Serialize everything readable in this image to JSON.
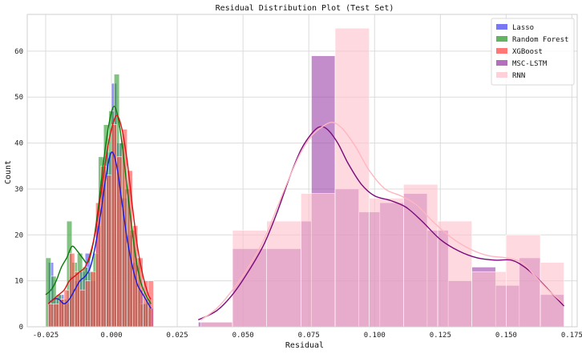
{
  "chart_data": {
    "type": "histogram",
    "title": "Residual Distribution Plot (Test Set)",
    "xlabel": "Residual",
    "ylabel": "Count",
    "xlim": [
      -0.032,
      0.177
    ],
    "ylim": [
      0,
      68
    ],
    "xticks": [
      -0.025,
      0.0,
      0.025,
      0.05,
      0.075,
      0.1,
      0.125,
      0.15,
      0.175
    ],
    "xtick_labels": [
      "-0.025",
      "0.000",
      "0.025",
      "0.050",
      "0.075",
      "0.100",
      "0.125",
      "0.150",
      "0.175"
    ],
    "yticks": [
      0,
      10,
      20,
      30,
      40,
      50,
      60
    ],
    "ytick_labels": [
      "0",
      "10",
      "20",
      "30",
      "40",
      "50",
      "60"
    ],
    "grid": true,
    "legend_position": "top-right",
    "series": [
      {
        "name": "Lasso",
        "color": "#4b4bf0",
        "bins": [
          {
            "x0": -0.024,
            "x1": -0.022,
            "count": 14
          },
          {
            "x0": -0.022,
            "x1": -0.02,
            "count": 6
          },
          {
            "x0": -0.02,
            "x1": -0.018,
            "count": 7
          },
          {
            "x0": -0.018,
            "x1": -0.016,
            "count": 5
          },
          {
            "x0": -0.016,
            "x1": -0.014,
            "count": 11
          },
          {
            "x0": -0.014,
            "x1": -0.012,
            "count": 10
          },
          {
            "x0": -0.012,
            "x1": -0.01,
            "count": 12
          },
          {
            "x0": -0.01,
            "x1": -0.008,
            "count": 16
          },
          {
            "x0": -0.008,
            "x1": -0.006,
            "count": 10
          },
          {
            "x0": -0.006,
            "x1": -0.004,
            "count": 22
          },
          {
            "x0": -0.004,
            "x1": -0.002,
            "count": 31
          },
          {
            "x0": -0.002,
            "x1": 0.0,
            "count": 38
          },
          {
            "x0": 0.0,
            "x1": 0.002,
            "count": 53
          },
          {
            "x0": 0.002,
            "x1": 0.004,
            "count": 40
          },
          {
            "x0": 0.004,
            "x1": 0.006,
            "count": 28
          },
          {
            "x0": 0.006,
            "x1": 0.008,
            "count": 20
          },
          {
            "x0": 0.008,
            "x1": 0.01,
            "count": 14
          },
          {
            "x0": 0.01,
            "x1": 0.012,
            "count": 8
          },
          {
            "x0": 0.012,
            "x1": 0.014,
            "count": 5
          },
          {
            "x0": 0.014,
            "x1": 0.016,
            "count": 4
          }
        ],
        "kde": [
          [
            -0.024,
            5
          ],
          [
            -0.022,
            6
          ],
          [
            -0.02,
            6
          ],
          [
            -0.018,
            5
          ],
          [
            -0.016,
            6
          ],
          [
            -0.014,
            8
          ],
          [
            -0.012,
            10
          ],
          [
            -0.01,
            11
          ],
          [
            -0.008,
            13
          ],
          [
            -0.006,
            18
          ],
          [
            -0.004,
            25
          ],
          [
            -0.002,
            33
          ],
          [
            0.0,
            38
          ],
          [
            0.002,
            35
          ],
          [
            0.004,
            27
          ],
          [
            0.006,
            19
          ],
          [
            0.008,
            13
          ],
          [
            0.01,
            9
          ],
          [
            0.012,
            7
          ],
          [
            0.014,
            5
          ],
          [
            0.015,
            4
          ]
        ]
      },
      {
        "name": "Random Forest",
        "color": "#2e9a2e",
        "bins": [
          {
            "x0": -0.025,
            "x1": -0.023,
            "count": 15
          },
          {
            "x0": -0.023,
            "x1": -0.021,
            "count": 11
          },
          {
            "x0": -0.021,
            "x1": -0.019,
            "count": 7
          },
          {
            "x0": -0.019,
            "x1": -0.017,
            "count": 6
          },
          {
            "x0": -0.017,
            "x1": -0.015,
            "count": 23
          },
          {
            "x0": -0.015,
            "x1": -0.013,
            "count": 14
          },
          {
            "x0": -0.013,
            "x1": -0.011,
            "count": 16
          },
          {
            "x0": -0.011,
            "x1": -0.009,
            "count": 13
          },
          {
            "x0": -0.009,
            "x1": -0.007,
            "count": 12
          },
          {
            "x0": -0.007,
            "x1": -0.005,
            "count": 16
          },
          {
            "x0": -0.005,
            "x1": -0.003,
            "count": 37
          },
          {
            "x0": -0.003,
            "x1": -0.001,
            "count": 44
          },
          {
            "x0": -0.001,
            "x1": 0.001,
            "count": 47
          },
          {
            "x0": 0.001,
            "x1": 0.003,
            "count": 55
          },
          {
            "x0": 0.003,
            "x1": 0.005,
            "count": 40
          },
          {
            "x0": 0.005,
            "x1": 0.007,
            "count": 30
          },
          {
            "x0": 0.007,
            "x1": 0.009,
            "count": 21
          },
          {
            "x0": 0.009,
            "x1": 0.011,
            "count": 15
          },
          {
            "x0": 0.011,
            "x1": 0.013,
            "count": 5
          },
          {
            "x0": 0.013,
            "x1": 0.015,
            "count": 6
          }
        ],
        "kde": [
          [
            -0.025,
            7
          ],
          [
            -0.023,
            8
          ],
          [
            -0.021,
            10
          ],
          [
            -0.019,
            13
          ],
          [
            -0.017,
            15
          ],
          [
            -0.015,
            17.5
          ],
          [
            -0.013,
            16.5
          ],
          [
            -0.011,
            15
          ],
          [
            -0.009,
            14
          ],
          [
            -0.007,
            18
          ],
          [
            -0.005,
            26
          ],
          [
            -0.003,
            36
          ],
          [
            -0.001,
            44
          ],
          [
            0.001,
            48
          ],
          [
            0.003,
            44
          ],
          [
            0.005,
            35
          ],
          [
            0.007,
            25
          ],
          [
            0.009,
            16
          ],
          [
            0.011,
            10
          ],
          [
            0.013,
            7
          ],
          [
            0.015,
            5
          ]
        ]
      },
      {
        "name": "XGBoost",
        "color": "#ff4a4a",
        "bins": [
          {
            "x0": -0.024,
            "x1": -0.022,
            "count": 5
          },
          {
            "x0": -0.022,
            "x1": -0.02,
            "count": 5
          },
          {
            "x0": -0.02,
            "x1": -0.018,
            "count": 6
          },
          {
            "x0": -0.018,
            "x1": -0.016,
            "count": 8
          },
          {
            "x0": -0.016,
            "x1": -0.014,
            "count": 16
          },
          {
            "x0": -0.014,
            "x1": -0.012,
            "count": 12
          },
          {
            "x0": -0.012,
            "x1": -0.01,
            "count": 8
          },
          {
            "x0": -0.01,
            "x1": -0.008,
            "count": 10
          },
          {
            "x0": -0.008,
            "x1": -0.006,
            "count": 12
          },
          {
            "x0": -0.006,
            "x1": -0.004,
            "count": 27
          },
          {
            "x0": -0.004,
            "x1": -0.002,
            "count": 35
          },
          {
            "x0": -0.002,
            "x1": 0.0,
            "count": 33
          },
          {
            "x0": 0.0,
            "x1": 0.002,
            "count": 44
          },
          {
            "x0": 0.002,
            "x1": 0.004,
            "count": 37
          },
          {
            "x0": 0.004,
            "x1": 0.006,
            "count": 43
          },
          {
            "x0": 0.006,
            "x1": 0.008,
            "count": 34
          },
          {
            "x0": 0.008,
            "x1": 0.01,
            "count": 22
          },
          {
            "x0": 0.01,
            "x1": 0.012,
            "count": 15
          },
          {
            "x0": 0.012,
            "x1": 0.014,
            "count": 10
          },
          {
            "x0": 0.014,
            "x1": 0.016,
            "count": 10
          }
        ],
        "kde": [
          [
            -0.024,
            5
          ],
          [
            -0.022,
            6
          ],
          [
            -0.02,
            7
          ],
          [
            -0.018,
            8
          ],
          [
            -0.016,
            10
          ],
          [
            -0.014,
            11
          ],
          [
            -0.012,
            12
          ],
          [
            -0.01,
            13
          ],
          [
            -0.008,
            16
          ],
          [
            -0.006,
            21
          ],
          [
            -0.004,
            29
          ],
          [
            -0.002,
            37
          ],
          [
            0.0,
            43
          ],
          [
            0.002,
            46
          ],
          [
            0.004,
            43
          ],
          [
            0.006,
            36
          ],
          [
            0.008,
            26
          ],
          [
            0.01,
            17
          ],
          [
            0.012,
            11
          ],
          [
            0.014,
            7
          ],
          [
            0.015,
            6
          ]
        ]
      },
      {
        "name": "MSC-LSTM",
        "color": "#9b3fa8",
        "bins": [
          {
            "x0": 0.033,
            "x1": 0.046,
            "count": 1
          },
          {
            "x0": 0.046,
            "x1": 0.072,
            "count": 17
          },
          {
            "x0": 0.072,
            "x1": 0.076,
            "count": 23
          },
          {
            "x0": 0.076,
            "x1": 0.085,
            "count": 59
          },
          {
            "x0": 0.085,
            "x1": 0.094,
            "count": 30
          },
          {
            "x0": 0.094,
            "x1": 0.102,
            "count": 25
          },
          {
            "x0": 0.102,
            "x1": 0.111,
            "count": 27
          },
          {
            "x0": 0.111,
            "x1": 0.12,
            "count": 29
          },
          {
            "x0": 0.12,
            "x1": 0.128,
            "count": 21
          },
          {
            "x0": 0.128,
            "x1": 0.137,
            "count": 10
          },
          {
            "x0": 0.137,
            "x1": 0.146,
            "count": 13
          },
          {
            "x0": 0.146,
            "x1": 0.155,
            "count": 9
          },
          {
            "x0": 0.155,
            "x1": 0.163,
            "count": 15
          },
          {
            "x0": 0.163,
            "x1": 0.172,
            "count": 7
          }
        ],
        "kde": [
          [
            0.033,
            1.5
          ],
          [
            0.04,
            3.5
          ],
          [
            0.046,
            7
          ],
          [
            0.052,
            12
          ],
          [
            0.058,
            18
          ],
          [
            0.063,
            25
          ],
          [
            0.068,
            33
          ],
          [
            0.072,
            38.5
          ],
          [
            0.076,
            42
          ],
          [
            0.079,
            43.5
          ],
          [
            0.082,
            43
          ],
          [
            0.086,
            40
          ],
          [
            0.09,
            35.5
          ],
          [
            0.095,
            31
          ],
          [
            0.1,
            28.5
          ],
          [
            0.106,
            27.5
          ],
          [
            0.112,
            26
          ],
          [
            0.118,
            23
          ],
          [
            0.125,
            19
          ],
          [
            0.132,
            16.5
          ],
          [
            0.139,
            15
          ],
          [
            0.146,
            14.5
          ],
          [
            0.152,
            14.5
          ],
          [
            0.157,
            13
          ],
          [
            0.162,
            10.5
          ],
          [
            0.167,
            7.5
          ],
          [
            0.172,
            4.5
          ]
        ]
      },
      {
        "name": "RNN",
        "color": "#ffc0cb",
        "bins": [
          {
            "x0": 0.034,
            "x1": 0.046,
            "count": 1
          },
          {
            "x0": 0.046,
            "x1": 0.059,
            "count": 21
          },
          {
            "x0": 0.059,
            "x1": 0.072,
            "count": 23
          },
          {
            "x0": 0.072,
            "x1": 0.085,
            "count": 29
          },
          {
            "x0": 0.085,
            "x1": 0.098,
            "count": 65
          },
          {
            "x0": 0.098,
            "x1": 0.111,
            "count": 28
          },
          {
            "x0": 0.111,
            "x1": 0.124,
            "count": 31
          },
          {
            "x0": 0.124,
            "x1": 0.137,
            "count": 23
          },
          {
            "x0": 0.137,
            "x1": 0.15,
            "count": 12
          },
          {
            "x0": 0.15,
            "x1": 0.163,
            "count": 20
          },
          {
            "x0": 0.163,
            "x1": 0.172,
            "count": 14
          }
        ],
        "kde": [
          [
            0.034,
            1.5
          ],
          [
            0.04,
            4
          ],
          [
            0.046,
            8
          ],
          [
            0.052,
            13
          ],
          [
            0.058,
            19
          ],
          [
            0.063,
            26
          ],
          [
            0.068,
            33
          ],
          [
            0.072,
            38
          ],
          [
            0.076,
            41.5
          ],
          [
            0.08,
            43.5
          ],
          [
            0.084,
            44.5
          ],
          [
            0.088,
            43
          ],
          [
            0.093,
            39
          ],
          [
            0.098,
            34
          ],
          [
            0.104,
            30
          ],
          [
            0.11,
            28.5
          ],
          [
            0.116,
            26.5
          ],
          [
            0.122,
            23
          ],
          [
            0.129,
            19.5
          ],
          [
            0.136,
            17
          ],
          [
            0.143,
            15.5
          ],
          [
            0.15,
            15
          ],
          [
            0.156,
            14
          ],
          [
            0.161,
            11
          ],
          [
            0.166,
            8
          ],
          [
            0.172,
            5
          ]
        ]
      }
    ]
  }
}
